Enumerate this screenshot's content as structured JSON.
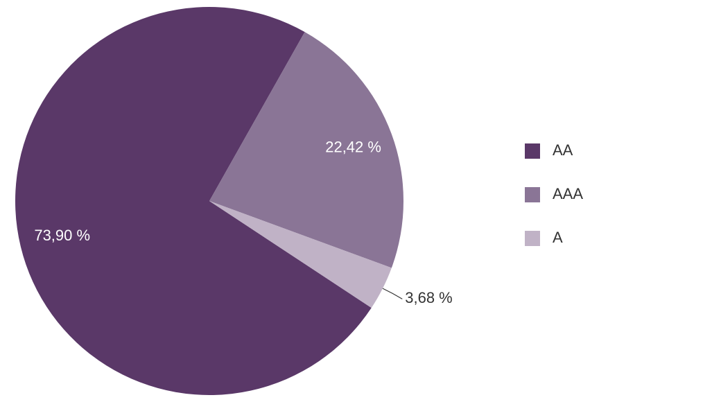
{
  "chart_data": {
    "type": "pie",
    "categories": [
      "AA",
      "AAA",
      "A"
    ],
    "values": [
      73.9,
      22.42,
      3.68
    ],
    "value_labels": [
      "73,90 %",
      "22,42 %",
      "3,68 %"
    ],
    "colors": [
      "#5a3868",
      "#8a7596",
      "#c0b2c6"
    ],
    "legend": "right"
  }
}
